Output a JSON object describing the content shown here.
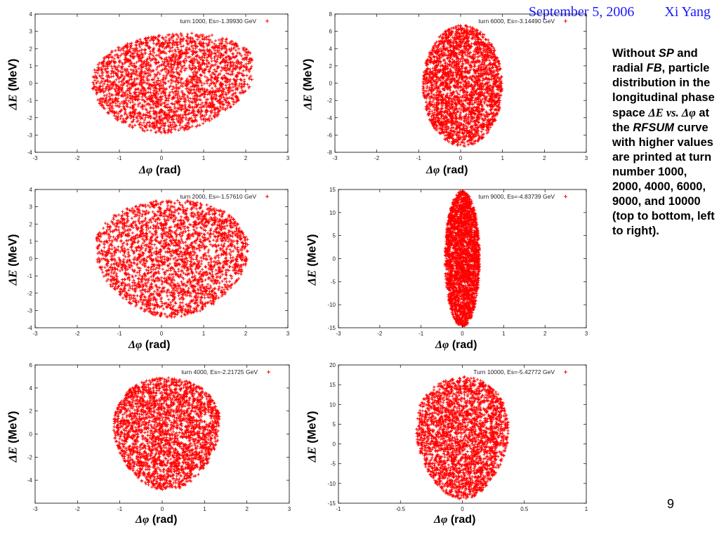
{
  "header": {
    "date": "September 5, 2006",
    "author": "Xi Yang"
  },
  "caption": {
    "p1": "Without ",
    "sp": "SP",
    "p2": " and radial ",
    "fb": "FB",
    "p3": ", particle distribution in the longitudinal phase space ",
    "m1": "ΔE vs. Δφ",
    "p4": " at the ",
    "rfsum": "RFSUM",
    "p5": " curve with higher values are printed at turn number 1000, 2000, 4000, 6000, 9000, and 10000 (top to bottom, left to right)."
  },
  "page_number": "9",
  "colors": {
    "points": "#ff0000",
    "header_text": "#1a1aff"
  },
  "chart_data": [
    {
      "type": "scatter",
      "legend": "turn 1000, Es=-1.39930 GeV",
      "legend_position": "top-right",
      "xlabel_sym": "Δφ",
      "xlabel_unit": " (rad)",
      "ylabel_sym": "ΔE",
      "ylabel_unit": " (MeV)",
      "xlim": [
        -3,
        3
      ],
      "ylim": [
        -4,
        4
      ],
      "xticks": [
        -3,
        -2,
        -1,
        0,
        1,
        2,
        3
      ],
      "yticks": [
        -4,
        -3,
        -2,
        -1,
        0,
        1,
        2,
        3,
        4
      ],
      "distribution": {
        "center": [
          0.25,
          0
        ],
        "semi_axes": [
          1.9,
          2.9
        ],
        "shape": "egg-skewed"
      }
    },
    {
      "type": "scatter",
      "legend": "turn 6000, Es=-3.14490 GeV",
      "legend_position": "top-right",
      "xlabel_sym": "Δφ",
      "xlabel_unit": " (rad)",
      "ylabel_sym": "ΔE",
      "ylabel_unit": " (MeV)",
      "xlim": [
        -3,
        3
      ],
      "ylim": [
        -8,
        8
      ],
      "xticks": [
        -3,
        -2,
        -1,
        0,
        1,
        2,
        3
      ],
      "yticks": [
        -8,
        -6,
        -4,
        -2,
        0,
        2,
        4,
        6,
        8
      ],
      "distribution": {
        "center": [
          0.05,
          -0.3
        ],
        "semi_axes": [
          0.95,
          7.0
        ],
        "shape": "ellipse"
      }
    },
    {
      "type": "scatter",
      "legend": "turn 2000, Es=-1.57610 GeV",
      "legend_position": "top-right",
      "xlabel_sym": "Δφ",
      "xlabel_unit": " (rad)",
      "ylabel_sym": "ΔE",
      "ylabel_unit": " (MeV)",
      "xlim": [
        -3,
        3
      ],
      "ylim": [
        -4,
        4
      ],
      "xticks": [
        -3,
        -2,
        -1,
        0,
        1,
        2,
        3
      ],
      "yticks": [
        -4,
        -3,
        -2,
        -1,
        0,
        1,
        2,
        3,
        4
      ],
      "distribution": {
        "center": [
          0.25,
          0
        ],
        "semi_axes": [
          1.8,
          3.4
        ],
        "shape": "egg"
      }
    },
    {
      "type": "scatter",
      "legend": "turn 9000, Es=-4.83739 GeV",
      "legend_position": "top-right",
      "xlabel_sym": "Δφ",
      "xlabel_unit": " (rad)",
      "ylabel_sym": "ΔE",
      "ylabel_unit": " (MeV)",
      "xlim": [
        -3,
        3
      ],
      "ylim": [
        -15,
        15
      ],
      "xticks": [
        -3,
        -2,
        -1,
        0,
        1,
        2,
        3
      ],
      "yticks": [
        -15,
        -10,
        -5,
        0,
        5,
        10,
        15
      ],
      "distribution": {
        "center": [
          0.0,
          0
        ],
        "semi_axes": [
          0.42,
          14.8
        ],
        "shape": "ellipse"
      }
    },
    {
      "type": "scatter",
      "legend": "turn 4000, Es=-2.21725 GeV",
      "legend_position": "top-right",
      "xlabel_sym": "Δφ",
      "xlabel_unit": " (rad)",
      "ylabel_sym": "ΔE",
      "ylabel_unit": " (MeV)",
      "xlim": [
        -3,
        3
      ],
      "ylim": [
        -6,
        6
      ],
      "xticks": [
        -3,
        -2,
        -1,
        0,
        1,
        2,
        3
      ],
      "yticks": [
        -4,
        -2,
        0,
        2,
        4,
        6
      ],
      "distribution": {
        "center": [
          0.1,
          0
        ],
        "semi_axes": [
          1.25,
          4.9
        ],
        "shape": "egg"
      }
    },
    {
      "type": "scatter",
      "legend": "Turn 10000, Es=-5.42772 GeV",
      "legend_position": "top-right",
      "xlabel_sym": "Δφ",
      "xlabel_unit": " (rad)",
      "ylabel_sym": "ΔE",
      "ylabel_unit": " (MeV)",
      "xlim": [
        -1,
        1
      ],
      "ylim": [
        -15,
        20
      ],
      "xticks": [
        -1,
        -0.5,
        0,
        0.5,
        1
      ],
      "yticks": [
        -15,
        -10,
        -5,
        0,
        5,
        10,
        15,
        20
      ],
      "distribution": {
        "center": [
          0.0,
          1.5
        ],
        "semi_axes": [
          0.37,
          15.5
        ],
        "shape": "egg"
      }
    }
  ]
}
